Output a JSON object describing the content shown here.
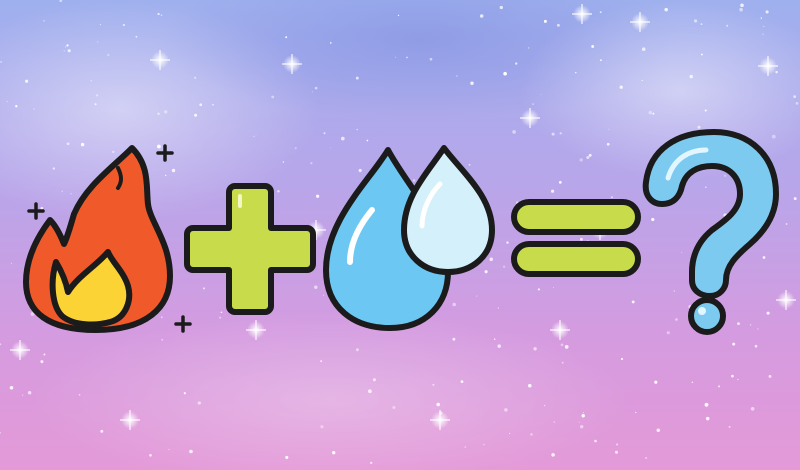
{
  "scene": {
    "description_free": true,
    "symbols": [
      {
        "role": "operand",
        "icon": "fire-icon"
      },
      {
        "role": "operator",
        "icon": "plus-icon"
      },
      {
        "role": "operand",
        "icon": "water-drops-icon"
      },
      {
        "role": "operator",
        "icon": "equals-icon"
      },
      {
        "role": "result",
        "icon": "question-mark-icon"
      }
    ]
  },
  "colors": {
    "sky_top": "#9fb0ee",
    "sky_mid": "#b7a6ea",
    "sky_bottom": "#e49ad8",
    "fire_outer": "#f05a2a",
    "fire_inner": "#fcd334",
    "operator_green": "#c8db4a",
    "drop_dark": "#6cc8f2",
    "drop_light": "#d4f0fb",
    "question_blue": "#7ccaf0",
    "outline": "#1b1b1b"
  }
}
